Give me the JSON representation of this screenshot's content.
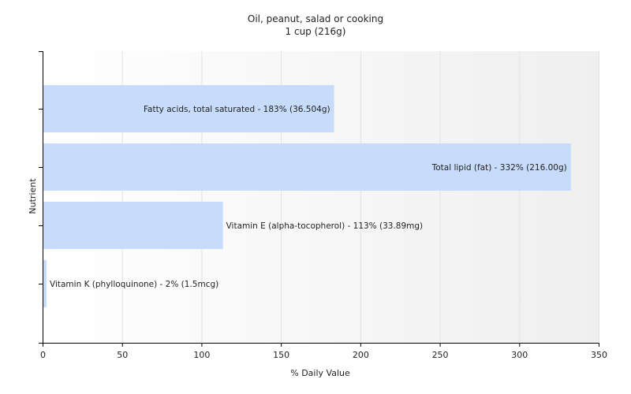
{
  "chart_data": {
    "type": "bar",
    "orientation": "horizontal",
    "title": "Oil, peanut, salad or cooking",
    "subtitle": "1 cup (216g)",
    "xlabel": "% Daily Value",
    "ylabel": "Nutrient",
    "xlim": [
      0,
      350
    ],
    "xticks": [
      "0",
      "50",
      "100",
      "150",
      "200",
      "250",
      "300",
      "350"
    ],
    "grid": true,
    "bar_color": "#c6dcfa",
    "categories": [
      "Fatty acids, total saturated",
      "Total lipid (fat)",
      "Vitamin E (alpha-tocopherol)",
      "Vitamin K (phylloquinone)"
    ],
    "values": [
      183,
      332,
      113,
      2
    ],
    "labels": [
      "Fatty acids, total saturated - 183% (36.504g)",
      "Total lipid (fat) - 332% (216.00g)",
      "Vitamin E (alpha-tocopherol) - 113% (33.89mg)",
      "Vitamin K (phylloquinone) - 2% (1.5mcg)"
    ]
  }
}
